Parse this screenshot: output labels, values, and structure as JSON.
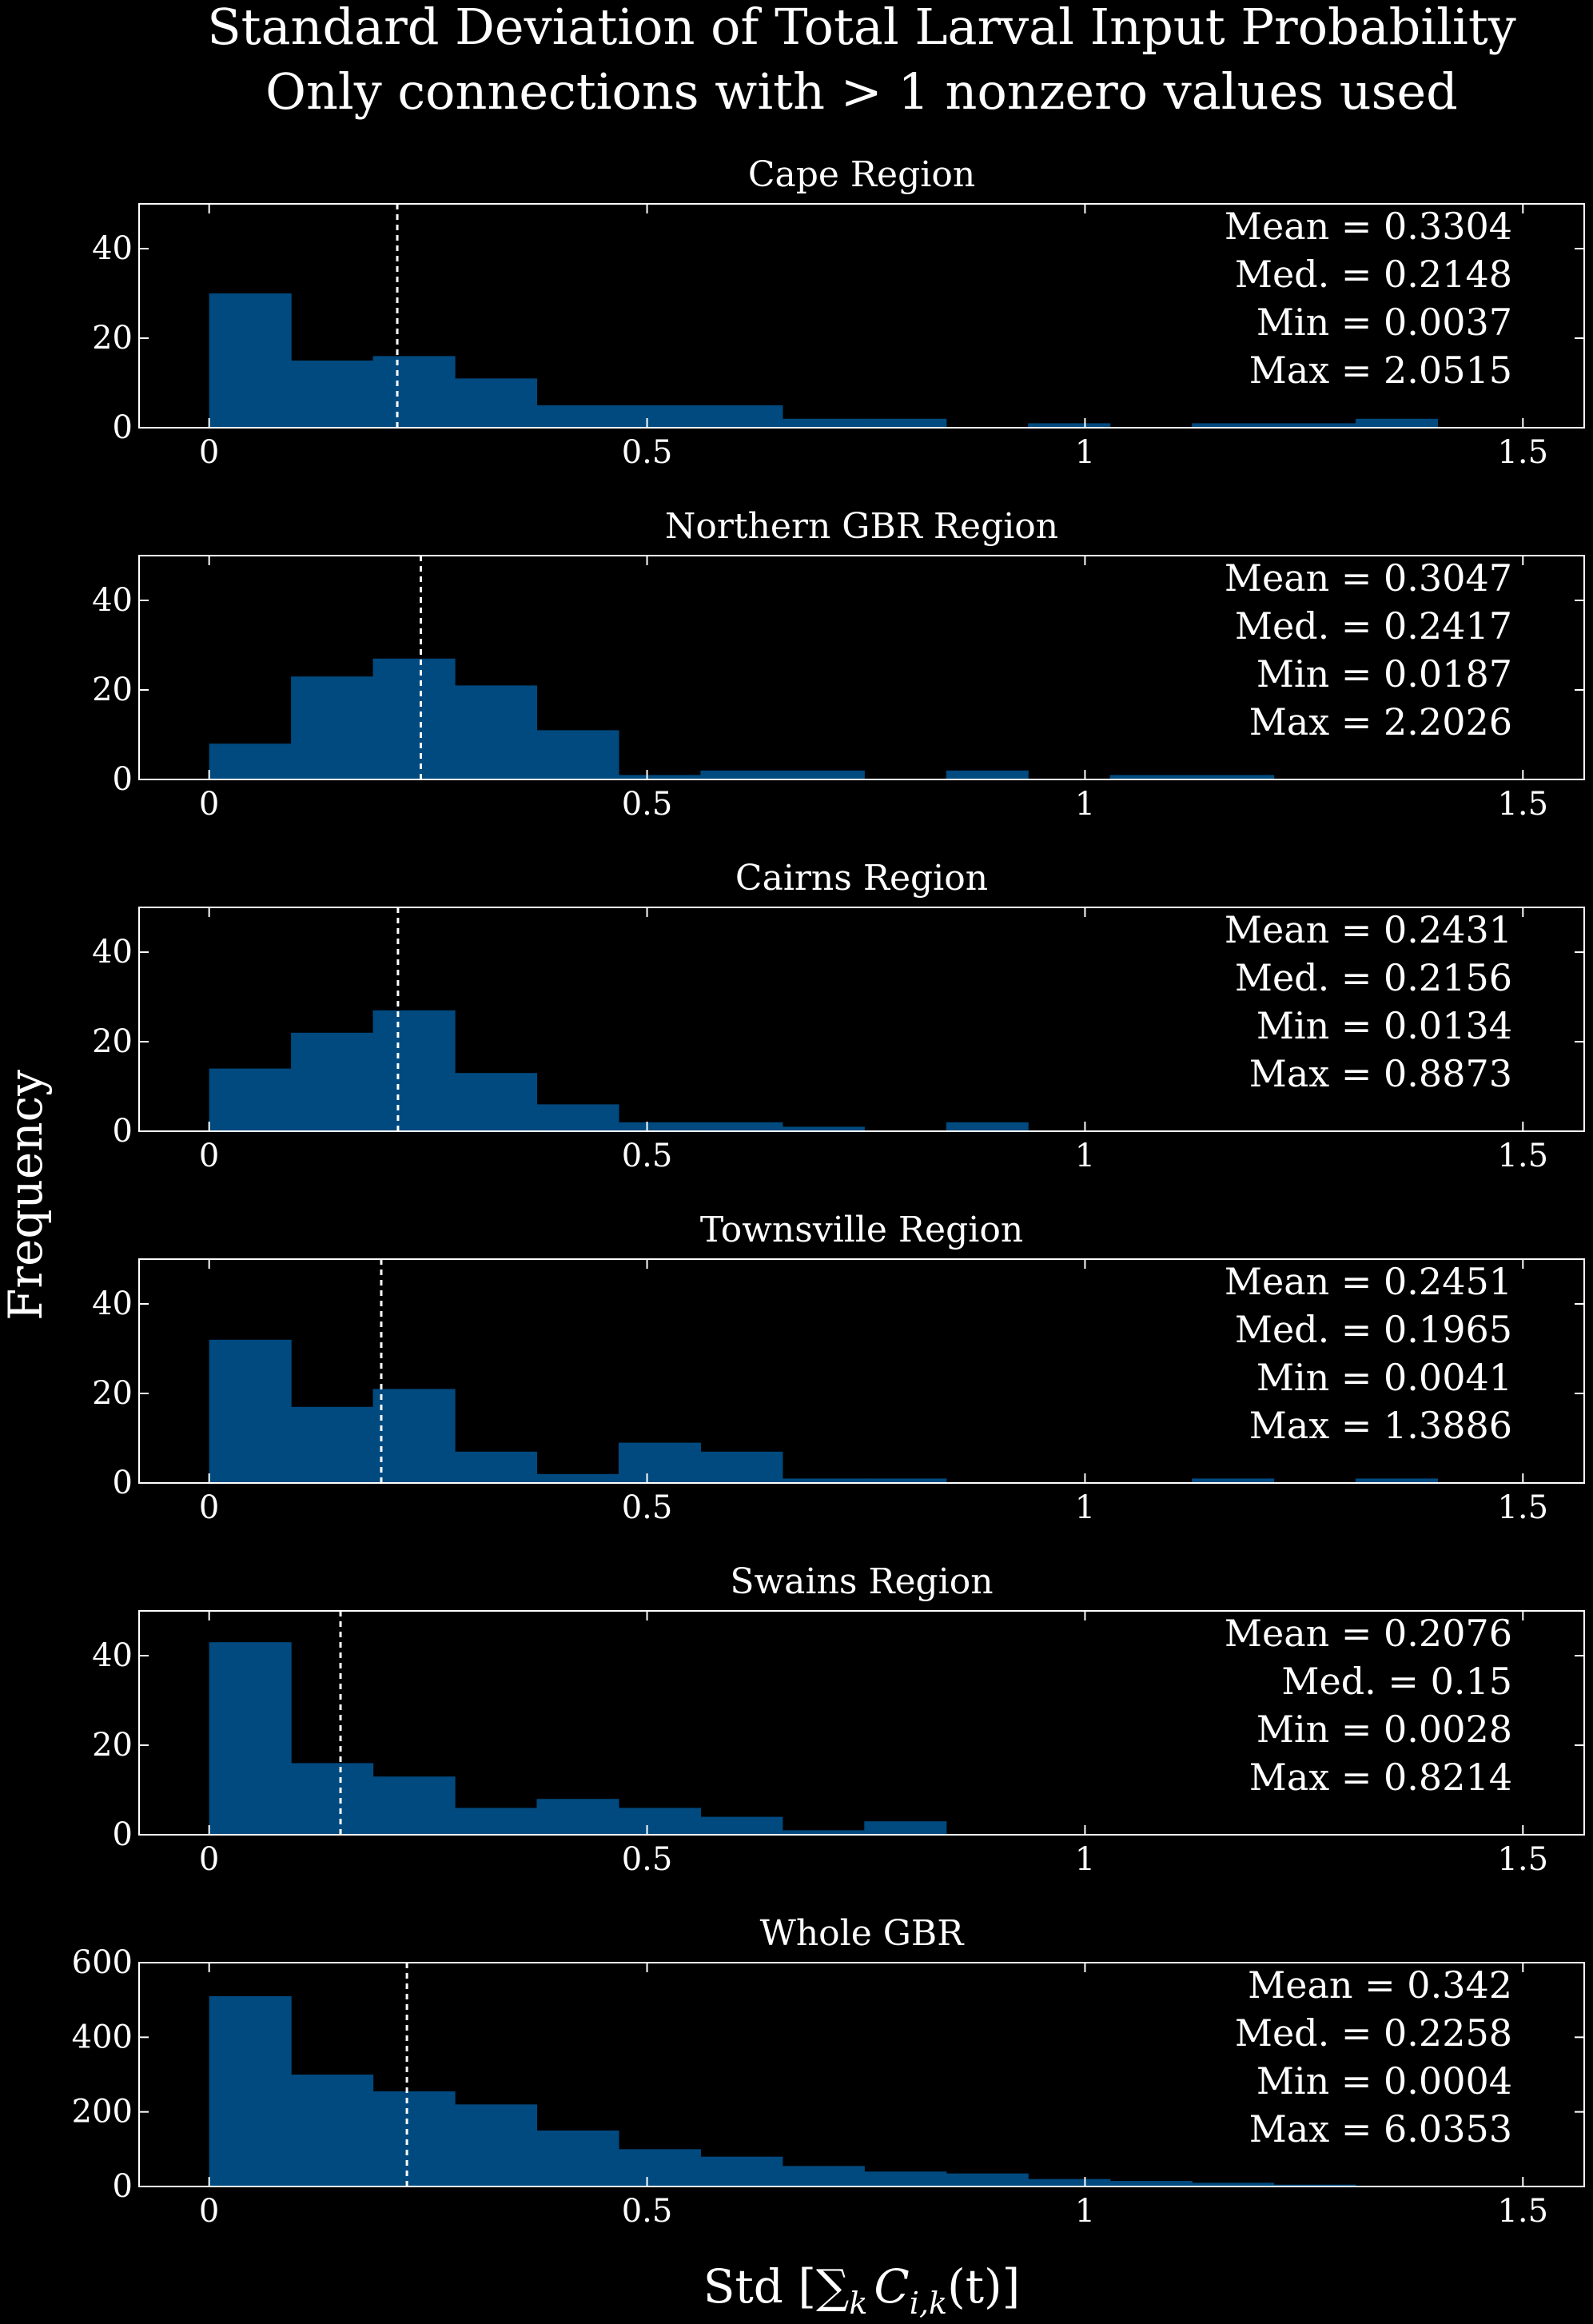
{
  "chart_data": {
    "type": "histogram",
    "title": "Standard Deviation of Total Larval Input Probability",
    "subtitle": "Only connections with > 1 nonzero values used",
    "ylabel": "Frequency",
    "xlabel_parts": {
      "main": "Std [",
      "sum": "∑",
      "sub_k": "k",
      "expr": "C",
      "sub_ik": "i,k",
      "tail": "(t)]"
    },
    "colors": {
      "bar": "#004a7f",
      "background": "#000000",
      "axes": "#ffffff",
      "median_line": "#ffffff"
    },
    "xlim": [
      -0.08,
      1.57
    ],
    "bin_width": 0.0935,
    "bin_start": 0.0,
    "xticks": [
      0,
      0.5,
      1,
      1.5
    ],
    "xtick_labels": [
      "0",
      "0.5",
      "1",
      "1.5"
    ],
    "panels": [
      {
        "name": "Cape Region",
        "ylim": [
          0,
          50
        ],
        "yticks": [
          0,
          20,
          40
        ],
        "ytick_labels": [
          "0",
          "20",
          "40"
        ],
        "counts": [
          30,
          15,
          16,
          11,
          5,
          5,
          5,
          2,
          2,
          0,
          1,
          0,
          1,
          1,
          2
        ],
        "median_line": 0.2148,
        "stats": [
          "Mean = 0.3304",
          "Med. = 0.2148",
          "Min = 0.0037",
          "Max = 2.0515"
        ]
      },
      {
        "name": "Northern GBR Region",
        "ylim": [
          0,
          50
        ],
        "yticks": [
          0,
          20,
          40
        ],
        "ytick_labels": [
          "0",
          "20",
          "40"
        ],
        "counts": [
          8,
          23,
          27,
          21,
          11,
          1,
          2,
          2,
          0,
          2,
          0,
          1,
          1
        ],
        "median_line": 0.2417,
        "stats": [
          "Mean = 0.3047",
          "Med. = 0.2417",
          "Min = 0.0187",
          "Max = 2.2026"
        ]
      },
      {
        "name": "Cairns Region",
        "ylim": [
          0,
          50
        ],
        "yticks": [
          0,
          20,
          40
        ],
        "ytick_labels": [
          "0",
          "20",
          "40"
        ],
        "counts": [
          14,
          22,
          27,
          13,
          6,
          2,
          2,
          1,
          0,
          2
        ],
        "median_line": 0.2156,
        "stats": [
          "Mean = 0.2431",
          "Med. = 0.2156",
          "Min = 0.0134",
          "Max = 0.8873"
        ]
      },
      {
        "name": "Townsville Region",
        "ylim": [
          0,
          50
        ],
        "yticks": [
          0,
          20,
          40
        ],
        "ytick_labels": [
          "0",
          "20",
          "40"
        ],
        "counts": [
          32,
          17,
          21,
          7,
          2,
          9,
          7,
          1,
          1,
          0,
          0,
          0,
          1,
          0,
          1
        ],
        "median_line": 0.1965,
        "stats": [
          "Mean = 0.2451",
          "Med. = 0.1965",
          "Min = 0.0041",
          "Max = 1.3886"
        ]
      },
      {
        "name": "Swains Region",
        "ylim": [
          0,
          50
        ],
        "yticks": [
          0,
          20,
          40
        ],
        "ytick_labels": [
          "0",
          "20",
          "40"
        ],
        "counts": [
          43,
          16,
          13,
          6,
          8,
          6,
          4,
          1,
          3
        ],
        "median_line": 0.15,
        "stats": [
          "Mean = 0.2076",
          "Med. = 0.15",
          "Min = 0.0028",
          "Max = 0.8214"
        ]
      },
      {
        "name": "Whole GBR",
        "ylim": [
          0,
          600
        ],
        "yticks": [
          0,
          200,
          400,
          600
        ],
        "ytick_labels": [
          "0",
          "200",
          "400",
          "600"
        ],
        "counts": [
          510,
          300,
          255,
          220,
          150,
          100,
          80,
          55,
          40,
          35,
          20,
          15,
          10,
          5
        ],
        "median_line": 0.2258,
        "stats": [
          "Mean = 0.342",
          "Med. = 0.2258",
          "Min = 0.0004",
          "Max = 6.0353"
        ]
      }
    ]
  }
}
